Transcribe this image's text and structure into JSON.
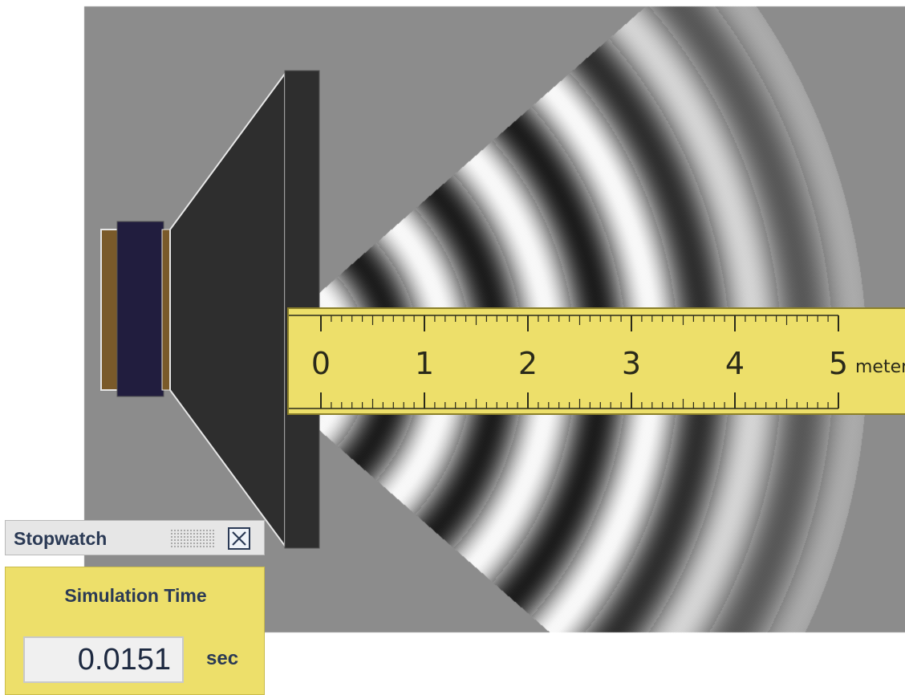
{
  "simulation": {
    "background_color": "#8c8c8c",
    "speaker_color": "#2e2e2e",
    "speaker_magnet_color": "#211d3e",
    "speaker_mount_color": "#7a5a2a"
  },
  "tape": {
    "labels": [
      "0",
      "1",
      "2",
      "3",
      "4",
      "5"
    ],
    "unit": "meters",
    "color": "#eddf6a"
  },
  "stopwatch": {
    "title": "Stopwatch",
    "close_icon": "close-icon",
    "label": "Simulation Time",
    "value": "0.0151",
    "unit": "sec"
  }
}
